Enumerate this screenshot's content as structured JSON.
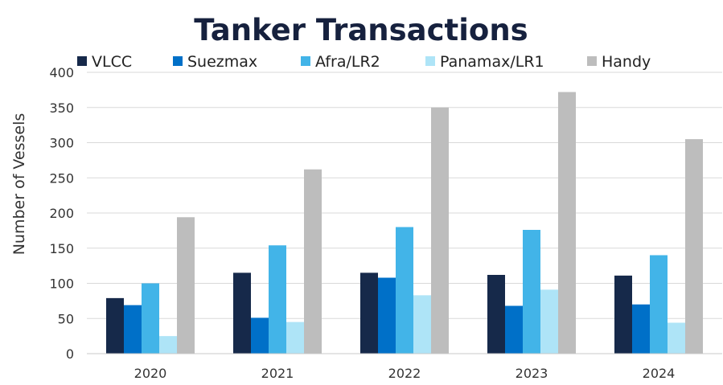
{
  "chart_data": {
    "type": "bar",
    "title": "Tanker Transactions",
    "xlabel": "",
    "ylabel": "Number of Vessels",
    "categories": [
      "2020",
      "2021",
      "2022",
      "2023",
      "2024"
    ],
    "ylim": [
      0,
      400
    ],
    "yticks": [
      0,
      50,
      100,
      150,
      200,
      250,
      300,
      350,
      400
    ],
    "grid": true,
    "legend_position": "top",
    "series": [
      {
        "name": "VLCC",
        "color": "#16294a",
        "values": [
          79,
          115,
          115,
          112,
          111
        ]
      },
      {
        "name": "Suezmax",
        "color": "#0070c8",
        "values": [
          69,
          51,
          108,
          68,
          70
        ]
      },
      {
        "name": "Afra/LR2",
        "color": "#42b4e8",
        "values": [
          100,
          154,
          180,
          176,
          140
        ]
      },
      {
        "name": "Panamax/LR1",
        "color": "#aee4f7",
        "values": [
          25,
          45,
          83,
          91,
          44
        ]
      },
      {
        "name": "Handy",
        "color": "#bdbdbd",
        "values": [
          194,
          262,
          350,
          372,
          305
        ]
      }
    ]
  }
}
